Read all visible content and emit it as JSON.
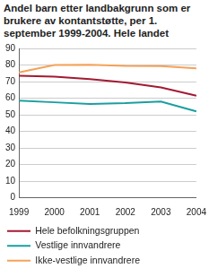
{
  "chart_data": {
    "type": "line",
    "title": "Andel barn etter landbakgrunn som er brukere av kontantstøtte, per 1. september 1999-2004. Hele landet",
    "categories": [
      "1999",
      "2000",
      "2001",
      "2002",
      "2003",
      "2004"
    ],
    "series": [
      {
        "name": "Hele befolkningsgruppen",
        "color": "#a31a32",
        "values": [
          73.5,
          73,
          71.5,
          69.5,
          66.5,
          61.5
        ]
      },
      {
        "name": "Vestlige innvandrere",
        "color": "#1b9ea0",
        "values": [
          58.5,
          57.5,
          56.5,
          57,
          58,
          52
        ]
      },
      {
        "name": "Ikke-vestlige innvandrere",
        "color": "#f4a259",
        "values": [
          75.5,
          80,
          80.2,
          79.5,
          79.3,
          78
        ]
      }
    ],
    "ylim": [
      0,
      90
    ],
    "yticks": [
      0,
      10,
      20,
      30,
      40,
      50,
      60,
      70,
      80,
      90
    ],
    "grid": true,
    "legend": "bottom"
  }
}
